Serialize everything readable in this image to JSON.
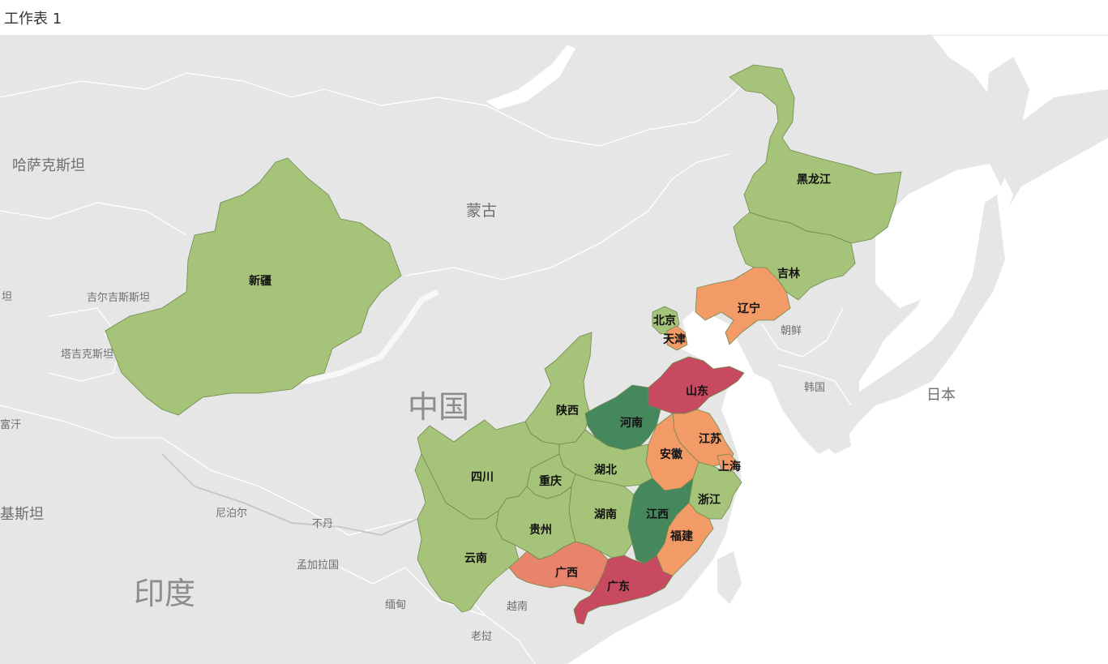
{
  "sheet_title": "工作表 1",
  "colors": {
    "green_light": "#a6c37a",
    "green_dark": "#46885d",
    "orange": "#f39b67",
    "orange_red": "#e8846b",
    "red": "#c74a60",
    "land": "#e6e6e6",
    "water": "#ffffff"
  },
  "country_labels": {
    "kazakhstan": "哈萨克斯坦",
    "mongolia": "蒙古",
    "kyrgyzstan": "吉尔吉斯斯坦",
    "tajikistan": "塔吉克斯坦",
    "china": "中国",
    "north_korea": "朝鲜",
    "south_korea": "韩国",
    "japan": "日本",
    "nepal": "尼泊尔",
    "bhutan": "不丹",
    "bangladesh": "孟加拉国",
    "india": "印度",
    "myanmar": "缅甸",
    "vietnam": "越南",
    "laos": "老挝",
    "pakistan_partial": "基斯坦",
    "afghanistan_partial": "富汗",
    "uzbek_partial": "坦"
  },
  "provinces": {
    "xinjiang": "新疆",
    "heilongjiang": "黑龙江",
    "jilin": "吉林",
    "liaoning": "辽宁",
    "beijing": "北京",
    "tianjin": "天津",
    "shandong": "山东",
    "shaanxi": "陕西",
    "henan": "河南",
    "jiangsu": "江苏",
    "anhui": "安徽",
    "shanghai": "上海",
    "hubei": "湖北",
    "sichuan": "四川",
    "chongqing": "重庆",
    "zhejiang": "浙江",
    "hunan": "湖南",
    "jiangxi": "江西",
    "guizhou": "贵州",
    "fujian": "福建",
    "yunnan": "云南",
    "guangxi": "广西",
    "guangdong": "广东"
  },
  "province_categories": {
    "xinjiang": "green_light",
    "heilongjiang": "green_light",
    "jilin": "green_light",
    "liaoning": "orange",
    "beijing": "green_light",
    "tianjin": "orange",
    "shandong": "red",
    "shaanxi": "green_light",
    "henan": "green_dark",
    "jiangsu": "orange",
    "anhui": "orange",
    "shanghai": "orange",
    "hubei": "green_light",
    "sichuan": "green_light",
    "chongqing": "green_light",
    "zhejiang": "green_light",
    "hunan": "green_light",
    "jiangxi": "green_dark",
    "guizhou": "green_light",
    "fujian": "orange",
    "yunnan": "green_light",
    "guangxi": "orange_red",
    "guangdong": "red"
  }
}
